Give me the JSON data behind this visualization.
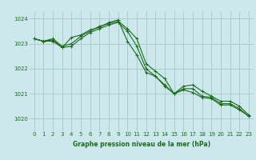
{
  "title": "Graphe pression niveau de la mer (hPa)",
  "bg_color": "#cce8ec",
  "grid_color": "#aacccc",
  "line_color": "#1a6b1a",
  "xlim": [
    -0.5,
    23.5
  ],
  "ylim": [
    1019.5,
    1024.3
  ],
  "yticks": [
    1020,
    1021,
    1022,
    1023,
    1024
  ],
  "xticks": [
    0,
    1,
    2,
    3,
    4,
    5,
    6,
    7,
    8,
    9,
    10,
    11,
    12,
    13,
    14,
    15,
    16,
    17,
    18,
    19,
    20,
    21,
    22,
    23
  ],
  "series": [
    [
      1023.2,
      1023.1,
      1023.2,
      1022.9,
      1023.0,
      1023.3,
      1023.5,
      1023.7,
      1023.8,
      1023.9,
      1023.6,
      1023.2,
      1022.2,
      1021.9,
      1021.6,
      1021.0,
      1021.2,
      1021.2,
      1020.9,
      1020.85,
      1020.6,
      1020.6,
      1020.4,
      1020.1
    ],
    [
      1023.2,
      1023.1,
      1023.15,
      1022.85,
      1022.9,
      1023.2,
      1023.45,
      1023.6,
      1023.75,
      1023.85,
      1023.5,
      1022.9,
      1022.0,
      1021.7,
      1021.35,
      1021.0,
      1021.15,
      1021.05,
      1020.85,
      1020.8,
      1020.55,
      1020.55,
      1020.35,
      1020.1
    ],
    [
      1023.2,
      1023.1,
      1023.1,
      1022.85,
      1023.25,
      1023.35,
      1023.55,
      1023.65,
      1023.85,
      1023.95,
      1023.1,
      1022.55,
      1021.85,
      1021.7,
      1021.3,
      1021.0,
      1021.3,
      1021.35,
      1021.1,
      1020.9,
      1020.7,
      1020.7,
      1020.5,
      1020.15
    ]
  ],
  "title_fontsize": 5.5,
  "tick_fontsize": 5.0
}
